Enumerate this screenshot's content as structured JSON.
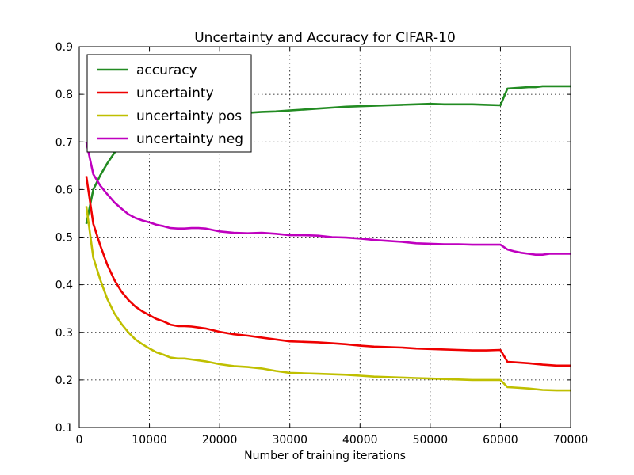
{
  "chart_data": {
    "type": "line",
    "title": "Uncertainty and Accuracy for CIFAR-10",
    "xlabel": "Number of training iterations",
    "ylabel": "",
    "xlim": [
      0,
      70000
    ],
    "ylim": [
      0.1,
      0.9
    ],
    "xticks": [
      0,
      10000,
      20000,
      30000,
      40000,
      50000,
      60000,
      70000
    ],
    "yticks": [
      0.1,
      0.2,
      0.3,
      0.4,
      0.5,
      0.6,
      0.7,
      0.8,
      0.9
    ],
    "xtick_labels": [
      "0",
      "10000",
      "20000",
      "30000",
      "40000",
      "50000",
      "60000",
      "70000"
    ],
    "ytick_labels": [
      "0.1",
      "0.2",
      "0.3",
      "0.4",
      "0.5",
      "0.6",
      "0.7",
      "0.8",
      "0.9"
    ],
    "grid": true,
    "legend_position": "top-left",
    "series": [
      {
        "name": "accuracy",
        "color": "#228B22",
        "x": [
          1000,
          2000,
          3000,
          4000,
          5000,
          6000,
          7000,
          8000,
          9000,
          10000,
          12000,
          14000,
          16000,
          18000,
          20000,
          22000,
          24000,
          26000,
          28000,
          30000,
          32000,
          34000,
          36000,
          38000,
          40000,
          42000,
          44000,
          46000,
          48000,
          50000,
          52000,
          54000,
          56000,
          58000,
          60000,
          61000,
          62000,
          63000,
          64000,
          65000,
          66000,
          67000,
          68000,
          69000,
          70000
        ],
        "y": [
          0.528,
          0.6,
          0.63,
          0.655,
          0.677,
          0.695,
          0.71,
          0.72,
          0.728,
          0.735,
          0.743,
          0.748,
          0.752,
          0.755,
          0.757,
          0.759,
          0.761,
          0.763,
          0.764,
          0.766,
          0.768,
          0.77,
          0.772,
          0.774,
          0.775,
          0.776,
          0.777,
          0.778,
          0.779,
          0.78,
          0.779,
          0.779,
          0.779,
          0.778,
          0.777,
          0.812,
          0.813,
          0.814,
          0.815,
          0.815,
          0.817,
          0.817,
          0.817,
          0.817,
          0.817
        ]
      },
      {
        "name": "uncertainty",
        "color": "#EE0000",
        "x": [
          1000,
          2000,
          3000,
          4000,
          5000,
          6000,
          7000,
          8000,
          9000,
          10000,
          11000,
          12000,
          13000,
          14000,
          15000,
          16000,
          17000,
          18000,
          20000,
          22000,
          24000,
          26000,
          28000,
          30000,
          32000,
          34000,
          36000,
          38000,
          40000,
          42000,
          44000,
          46000,
          48000,
          50000,
          52000,
          54000,
          56000,
          58000,
          60000,
          61000,
          62000,
          64000,
          66000,
          68000,
          70000
        ],
        "y": [
          0.628,
          0.528,
          0.482,
          0.442,
          0.41,
          0.386,
          0.368,
          0.354,
          0.344,
          0.336,
          0.328,
          0.323,
          0.316,
          0.313,
          0.313,
          0.312,
          0.31,
          0.308,
          0.301,
          0.296,
          0.293,
          0.289,
          0.285,
          0.281,
          0.28,
          0.279,
          0.277,
          0.275,
          0.272,
          0.27,
          0.269,
          0.268,
          0.266,
          0.265,
          0.264,
          0.263,
          0.262,
          0.262,
          0.263,
          0.238,
          0.237,
          0.235,
          0.232,
          0.23,
          0.23
        ]
      },
      {
        "name": "uncertainty pos",
        "color": "#BFBF00",
        "x": [
          1000,
          2000,
          3000,
          4000,
          5000,
          6000,
          7000,
          8000,
          9000,
          10000,
          11000,
          12000,
          13000,
          14000,
          15000,
          16000,
          18000,
          20000,
          22000,
          24000,
          26000,
          28000,
          30000,
          32000,
          34000,
          36000,
          38000,
          40000,
          42000,
          44000,
          46000,
          48000,
          50000,
          52000,
          54000,
          56000,
          58000,
          60000,
          61000,
          62000,
          64000,
          66000,
          68000,
          70000
        ],
        "y": [
          0.565,
          0.457,
          0.41,
          0.37,
          0.34,
          0.318,
          0.3,
          0.285,
          0.275,
          0.266,
          0.258,
          0.253,
          0.247,
          0.245,
          0.245,
          0.243,
          0.239,
          0.233,
          0.229,
          0.227,
          0.224,
          0.219,
          0.215,
          0.214,
          0.213,
          0.212,
          0.211,
          0.209,
          0.207,
          0.206,
          0.205,
          0.204,
          0.203,
          0.202,
          0.201,
          0.2,
          0.2,
          0.2,
          0.185,
          0.184,
          0.182,
          0.179,
          0.178,
          0.178
        ]
      },
      {
        "name": "uncertainty neg",
        "color": "#BF00BF",
        "x": [
          1000,
          2000,
          3000,
          4000,
          5000,
          6000,
          7000,
          8000,
          9000,
          10000,
          11000,
          12000,
          13000,
          14000,
          15000,
          16000,
          17000,
          18000,
          19000,
          20000,
          22000,
          24000,
          26000,
          28000,
          30000,
          32000,
          34000,
          36000,
          38000,
          40000,
          42000,
          44000,
          46000,
          48000,
          50000,
          52000,
          54000,
          56000,
          58000,
          60000,
          61000,
          62000,
          63000,
          64000,
          65000,
          66000,
          67000,
          68000,
          69000,
          70000
        ],
        "y": [
          0.7,
          0.632,
          0.608,
          0.59,
          0.573,
          0.56,
          0.548,
          0.54,
          0.535,
          0.531,
          0.526,
          0.523,
          0.519,
          0.518,
          0.518,
          0.519,
          0.519,
          0.518,
          0.515,
          0.512,
          0.509,
          0.508,
          0.509,
          0.507,
          0.504,
          0.504,
          0.503,
          0.5,
          0.499,
          0.497,
          0.494,
          0.492,
          0.49,
          0.487,
          0.486,
          0.485,
          0.485,
          0.484,
          0.484,
          0.484,
          0.474,
          0.47,
          0.467,
          0.465,
          0.463,
          0.463,
          0.465,
          0.465,
          0.465,
          0.465
        ]
      }
    ]
  }
}
